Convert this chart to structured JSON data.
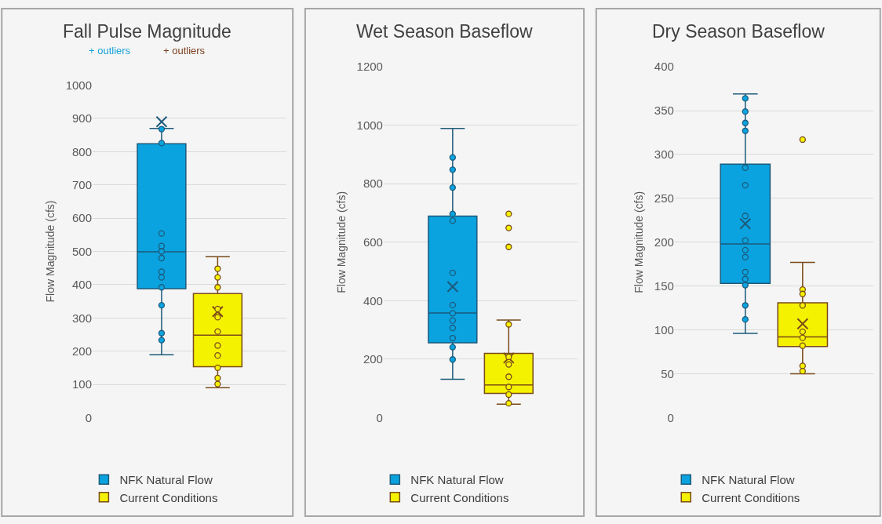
{
  "chart_data": [
    {
      "type": "box",
      "title": "Fall Pulse Magnitude",
      "ylabel": "Flow Magnitude (cfs)",
      "categories": [
        null
      ],
      "ylim": [
        0,
        1000
      ],
      "yticks": [
        0,
        100,
        200,
        300,
        400,
        500,
        600,
        700,
        800,
        900,
        1000
      ],
      "grid": "y",
      "legend": "bottom",
      "tick_labels": "y",
      "marker": "circle",
      "annotations": [
        "+ outliers",
        "+ outliers"
      ],
      "series": [
        {
          "name": "NFK Natural Flow",
          "color": "#0aa3e0",
          "boxes": [
            {
              "low": 189,
              "q1": 388,
              "median": 499,
              "q3": 824,
              "high": 870,
              "mean": 890
            }
          ]
        },
        {
          "name": "Current Conditions",
          "color": "#f5f200",
          "boxes": [
            {
              "low": 90,
              "q1": 153,
              "median": 248,
              "q3": 373,
              "high": 484,
              "mean": 319
            }
          ]
        },
        {
          "type": "scatter",
          "color": "#0aa3e0",
          "x": [
            null,
            null,
            null,
            null,
            null,
            null,
            null,
            null,
            null,
            null,
            null,
            null
          ],
          "values": [
            868,
            826,
            554,
            516,
            500,
            480,
            439,
            422,
            392,
            338,
            254,
            233
          ]
        },
        {
          "type": "scatter",
          "color": "#f5f200",
          "x": [
            null,
            null,
            null,
            null,
            null,
            null,
            null,
            null,
            null,
            null,
            null
          ],
          "values": [
            448,
            422,
            392,
            327,
            302,
            259,
            217,
            187,
            150,
            119,
            101
          ]
        }
      ]
    },
    {
      "type": "box",
      "title": "Wet Season Baseflow",
      "ylabel": "Flow Magnitude (cfs)",
      "categories": [
        null
      ],
      "ylim": [
        0,
        1200
      ],
      "yticks": [
        0,
        200,
        400,
        600,
        800,
        1000,
        1200
      ],
      "grid": "y",
      "legend": "bottom",
      "tick_labels": "y",
      "marker": "circle",
      "series": [
        {
          "name": "NFK Natural Flow",
          "color": "#0aa3e0",
          "boxes": [
            {
              "low": 131,
              "q1": 256,
              "median": 358,
              "q3": 689,
              "high": 989,
              "mean": 448
            }
          ]
        },
        {
          "name": "Current Conditions",
          "color": "#f5f200",
          "boxes": [
            {
              "low": 46,
              "q1": 83,
              "median": 112,
              "q3": 220,
              "high": 334,
              "mean": 204,
              "outliers": [
                697,
                649,
                584
              ]
            }
          ]
        },
        {
          "type": "scatter",
          "color": "#0aa3e0",
          "x": [
            null,
            null,
            null,
            null,
            null,
            null,
            null,
            null,
            null,
            null,
            null,
            null,
            null
          ],
          "values": [
            890,
            848,
            787,
            697,
            674,
            495,
            385,
            357,
            332,
            307,
            272,
            241,
            199
          ]
        },
        {
          "type": "scatter",
          "color": "#f5f200",
          "x": [
            null,
            null,
            null,
            null,
            null,
            null,
            null
          ],
          "values": [
            319,
            208,
            182,
            140,
            105,
            79,
            49
          ]
        }
      ]
    },
    {
      "type": "box",
      "title": "Dry Season Baseflow",
      "ylabel": "Flow Magnitude (cfs)",
      "categories": [
        null
      ],
      "ylim": [
        0,
        400
      ],
      "yticks": [
        0,
        50,
        100,
        150,
        200,
        250,
        300,
        350,
        400
      ],
      "grid": "y",
      "legend": "bottom",
      "tick_labels": "y",
      "marker": "circle",
      "series": [
        {
          "name": "NFK Natural Flow",
          "color": "#0aa3e0",
          "boxes": [
            {
              "low": 96,
              "q1": 153,
              "median": 198,
              "q3": 289,
              "high": 369,
              "mean": 221
            }
          ]
        },
        {
          "name": "Current Conditions",
          "color": "#f5f200",
          "boxes": [
            {
              "low": 50,
              "q1": 81,
              "median": 92,
              "q3": 131,
              "high": 177,
              "mean": 107,
              "outliers": [
                317
              ]
            }
          ]
        },
        {
          "type": "scatter",
          "color": "#0aa3e0",
          "x": [
            null,
            null,
            null,
            null,
            null,
            null,
            null,
            null,
            null,
            null,
            null,
            null,
            null,
            null,
            null
          ],
          "values": [
            364,
            349,
            336,
            327,
            285,
            265,
            230,
            202,
            191,
            183,
            166,
            158,
            151,
            128,
            112
          ]
        },
        {
          "type": "scatter",
          "color": "#f5f200",
          "x": [
            null,
            null,
            null,
            null,
            null,
            null,
            null,
            null
          ],
          "values": [
            146,
            141,
            128,
            98,
            91,
            82,
            59,
            53
          ]
        }
      ]
    }
  ]
}
